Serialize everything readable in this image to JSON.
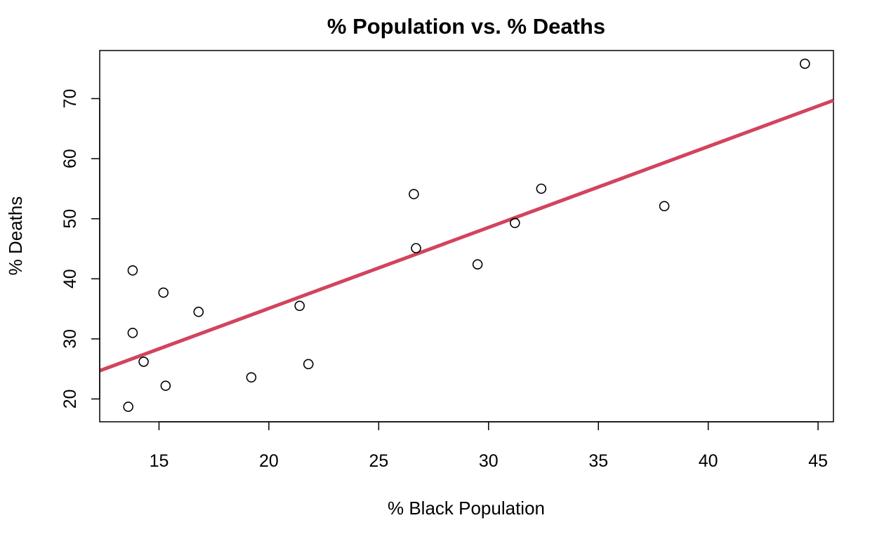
{
  "chart_data": {
    "type": "scatter",
    "title": "% Population vs. % Deaths",
    "xlabel": "% Black Population",
    "ylabel": "% Deaths",
    "xlim": [
      12.3,
      45.7
    ],
    "ylim": [
      16.2,
      78.0
    ],
    "xticks": [
      15,
      20,
      25,
      30,
      35,
      40,
      45
    ],
    "yticks": [
      20,
      30,
      40,
      50,
      60,
      70
    ],
    "grid": false,
    "legend": "none",
    "point_color": "#000000",
    "fit_line_color": "#d2445e",
    "points": [
      {
        "x": 13.6,
        "y": 18.7
      },
      {
        "x": 13.8,
        "y": 31.0
      },
      {
        "x": 13.8,
        "y": 41.4
      },
      {
        "x": 14.3,
        "y": 26.2
      },
      {
        "x": 15.2,
        "y": 37.7
      },
      {
        "x": 15.3,
        "y": 22.2
      },
      {
        "x": 16.8,
        "y": 34.5
      },
      {
        "x": 19.2,
        "y": 23.6
      },
      {
        "x": 21.4,
        "y": 35.5
      },
      {
        "x": 21.8,
        "y": 25.8
      },
      {
        "x": 26.6,
        "y": 54.1
      },
      {
        "x": 26.7,
        "y": 45.1
      },
      {
        "x": 29.5,
        "y": 42.4
      },
      {
        "x": 31.2,
        "y": 49.3
      },
      {
        "x": 32.4,
        "y": 55.0
      },
      {
        "x": 38.0,
        "y": 52.1
      },
      {
        "x": 44.4,
        "y": 75.8
      }
    ],
    "fit_line": {
      "x": [
        12.3,
        45.7
      ],
      "y": [
        24.7,
        69.7
      ]
    }
  }
}
